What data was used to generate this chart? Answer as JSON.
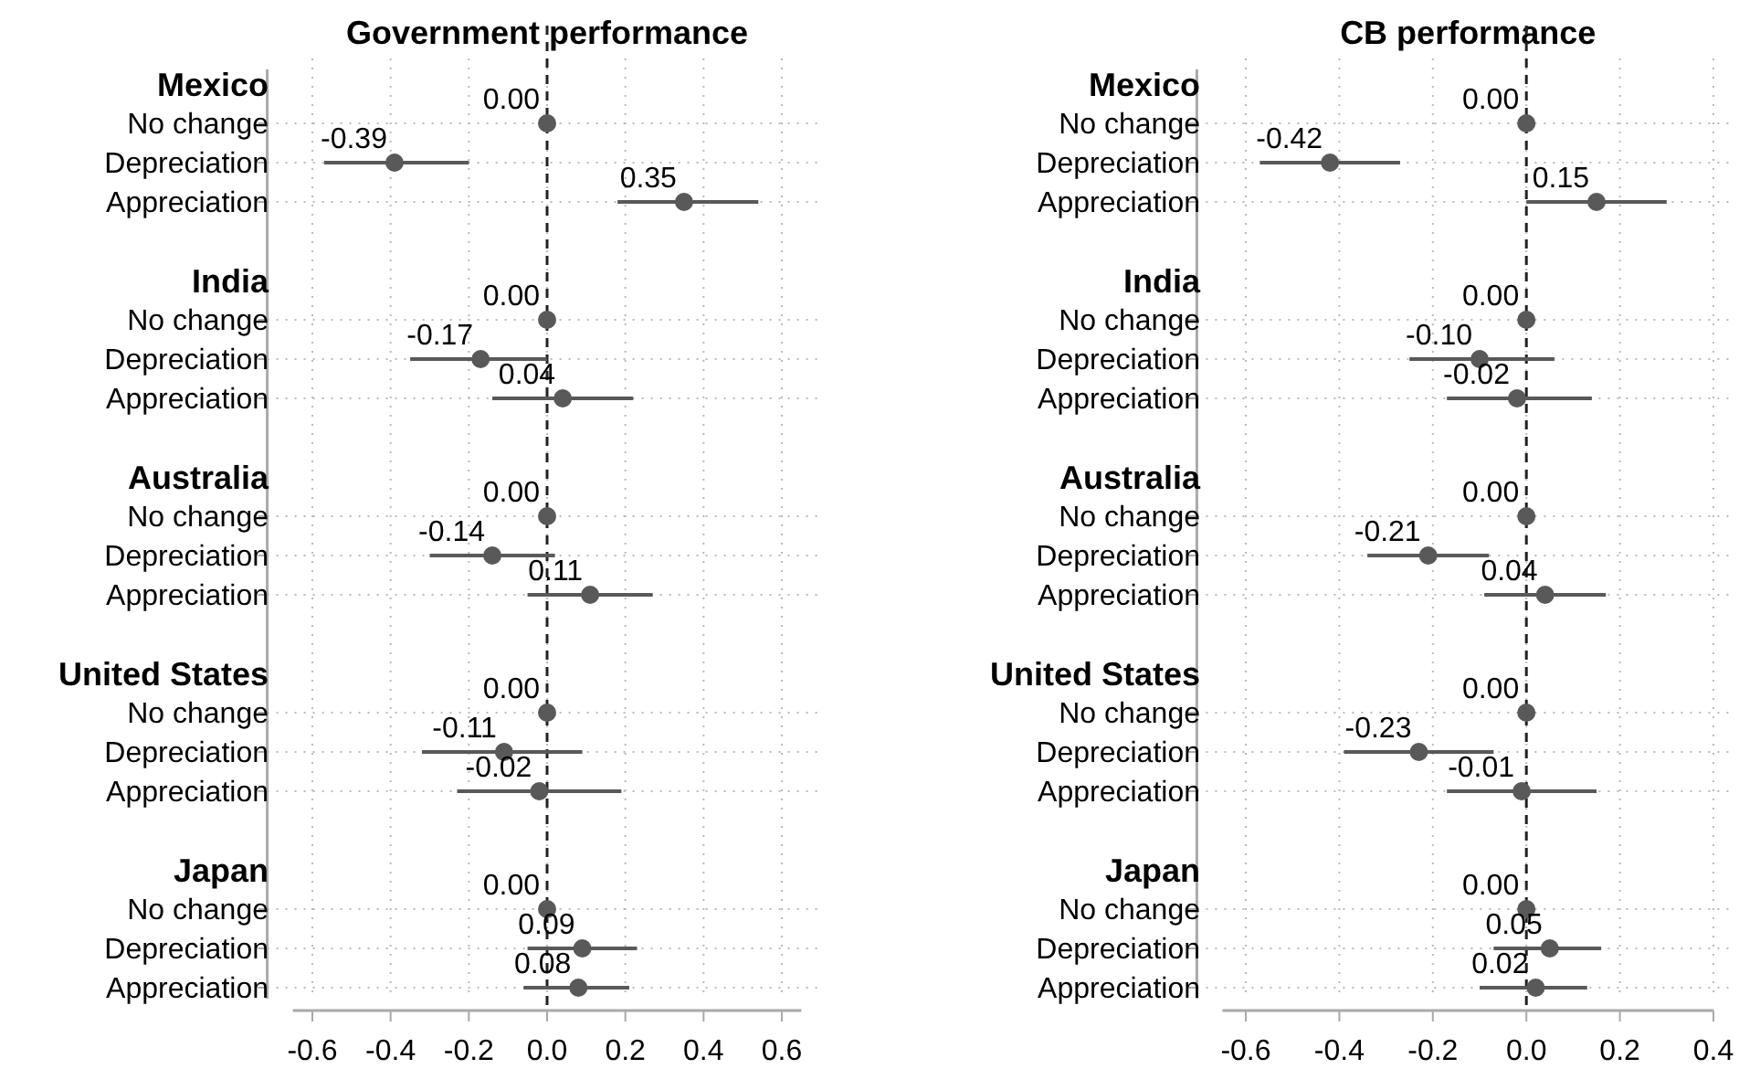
{
  "chart_data": [
    {
      "type": "scatter",
      "title": "Government performance",
      "orientation": "horizontal",
      "categories": [
        "Mexico",
        "No change",
        "Depreciation",
        "Appreciation",
        null,
        "India",
        "No change",
        "Depreciation",
        "Appreciation",
        null,
        "Australia",
        "No change",
        "Depreciation",
        "Appreciation",
        null,
        "United States",
        "No change",
        "Depreciation",
        "Appreciation",
        null,
        "Japan",
        "No change",
        "Depreciation",
        "Appreciation"
      ],
      "values": [
        null,
        0.0,
        -0.39,
        0.35,
        null,
        null,
        0.0,
        -0.17,
        0.04,
        null,
        null,
        0.0,
        -0.14,
        0.11,
        null,
        null,
        0.0,
        -0.11,
        -0.02,
        null,
        null,
        0.0,
        0.09,
        0.08
      ],
      "errors": [
        null,
        null,
        [
          -0.57,
          -0.2
        ],
        [
          0.18,
          0.54
        ],
        null,
        null,
        null,
        [
          -0.35,
          0.0
        ],
        [
          -0.14,
          0.22
        ],
        null,
        null,
        null,
        [
          -0.3,
          0.02
        ],
        [
          -0.05,
          0.27
        ],
        null,
        null,
        null,
        [
          -0.32,
          0.09
        ],
        [
          -0.23,
          0.19
        ],
        null,
        null,
        null,
        [
          -0.05,
          0.23
        ],
        [
          -0.06,
          0.21
        ]
      ],
      "value_labels": [
        null,
        "0.00",
        "-0.39",
        "0.35",
        null,
        null,
        "0.00",
        "-0.17",
        "0.04",
        null,
        null,
        "0.00",
        "-0.14",
        "0.11",
        null,
        null,
        "0.00",
        "-0.11",
        "-0.02",
        null,
        null,
        "0.00",
        "0.09",
        "0.08"
      ],
      "color": "#595959",
      "marker": "circle",
      "grid": true,
      "xlim": [
        -0.65,
        0.65
      ],
      "xticks": [
        {
          "value": -0.6,
          "label": "-0.6"
        },
        {
          "value": -0.4,
          "label": "-0.4"
        },
        {
          "value": -0.2,
          "label": "-0.2"
        },
        {
          "value": 0,
          "label": "0.0"
        },
        {
          "value": 0.2,
          "label": "0.2"
        },
        {
          "value": 0.4,
          "label": "0.4"
        },
        {
          "value": 0.6,
          "label": "0.6"
        }
      ],
      "ref_lines": [
        {
          "axis": "x",
          "value": 0,
          "line_style": "dashed"
        }
      ]
    },
    {
      "type": "scatter",
      "title": "CB performance",
      "orientation": "horizontal",
      "categories": [
        "Mexico",
        "No change",
        "Depreciation",
        "Appreciation",
        null,
        "India",
        "No change",
        "Depreciation",
        "Appreciation",
        null,
        "Australia",
        "No change",
        "Depreciation",
        "Appreciation",
        null,
        "United States",
        "No change",
        "Depreciation",
        "Appreciation",
        null,
        "Japan",
        "No change",
        "Depreciation",
        "Appreciation"
      ],
      "values": [
        null,
        0.0,
        -0.42,
        0.15,
        null,
        null,
        0.0,
        -0.1,
        -0.02,
        null,
        null,
        0.0,
        -0.21,
        0.04,
        null,
        null,
        0.0,
        -0.23,
        -0.01,
        null,
        null,
        0.0,
        0.05,
        0.02
      ],
      "errors": [
        null,
        null,
        [
          -0.57,
          -0.27
        ],
        [
          0.0,
          0.3
        ],
        null,
        null,
        null,
        [
          -0.25,
          0.06
        ],
        [
          -0.17,
          0.14
        ],
        null,
        null,
        null,
        [
          -0.34,
          -0.08
        ],
        [
          -0.09,
          0.17
        ],
        null,
        null,
        null,
        [
          -0.39,
          -0.07
        ],
        [
          -0.17,
          0.15
        ],
        null,
        null,
        null,
        [
          -0.07,
          0.16
        ],
        [
          -0.1,
          0.13
        ]
      ],
      "value_labels": [
        null,
        "0.00",
        "-0.42",
        "0.15",
        null,
        null,
        "0.00",
        "-0.10",
        "-0.02",
        null,
        null,
        "0.00",
        "-0.21",
        "0.04",
        null,
        null,
        "0.00",
        "-0.23",
        "-0.01",
        null,
        null,
        "0.00",
        "0.05",
        "0.02"
      ],
      "color": "#595959",
      "marker": "circle",
      "grid": true,
      "xlim": [
        -0.65,
        0.4
      ],
      "xticks": [
        {
          "value": -0.6,
          "label": "-0.6"
        },
        {
          "value": -0.4,
          "label": "-0.4"
        },
        {
          "value": -0.2,
          "label": "-0.2"
        },
        {
          "value": 0,
          "label": "0.0"
        },
        {
          "value": 0.2,
          "label": "0.2"
        },
        {
          "value": 0.4,
          "label": "0.4"
        }
      ],
      "ref_lines": [
        {
          "axis": "x",
          "value": 0,
          "line_style": "dashed"
        }
      ]
    }
  ]
}
